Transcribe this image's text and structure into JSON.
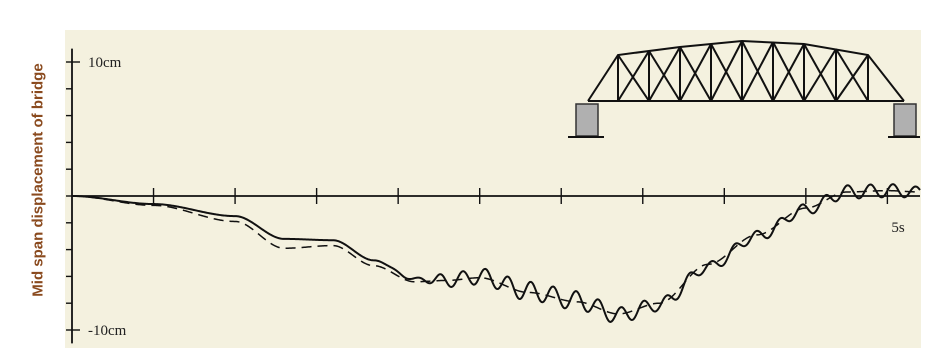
{
  "chart_data": {
    "type": "line",
    "title": "",
    "xlabel": "",
    "ylabel": "Mid span displacement of bridge",
    "x_unit": "s",
    "y_unit": "cm",
    "xlim": [
      0,
      5.2
    ],
    "ylim": [
      -10,
      10
    ],
    "y_tick_labels": [
      {
        "value": 10,
        "label": "10cm"
      },
      {
        "value": -10,
        "label": "-10cm"
      }
    ],
    "x_tick_labels": [
      {
        "value": 5,
        "label": "5s"
      }
    ],
    "grid": false,
    "legend": "none",
    "series": [
      {
        "style": "solid",
        "x": [
          0,
          0.5,
          1.0,
          1.3,
          1.6,
          1.85,
          2.1,
          2.3,
          2.5,
          2.8,
          3.1,
          3.35,
          3.6,
          3.9,
          4.2,
          4.5,
          4.75,
          5.0,
          5.2
        ],
        "y": [
          0,
          -0.6,
          -1.5,
          -3.2,
          -3.3,
          -4.8,
          -6.2,
          -6.3,
          -6.0,
          -7.1,
          -7.8,
          -8.9,
          -8.1,
          -5.3,
          -3.0,
          -1.0,
          0.3,
          0.4,
          0.3
        ],
        "wiggle_amplitude": [
          0,
          0,
          0,
          0,
          0,
          0,
          0.1,
          0.5,
          0.6,
          0.7,
          0.7,
          0.6,
          0.5,
          0.4,
          0.4,
          0.4,
          0.5,
          0.5,
          0.4
        ]
      },
      {
        "style": "dashed",
        "x": [
          0,
          0.5,
          1.0,
          1.3,
          1.6,
          1.85,
          2.1,
          2.3,
          2.5,
          2.8,
          3.1,
          3.35,
          3.6,
          3.9,
          4.2,
          4.5,
          4.75,
          5.0,
          5.2
        ],
        "y": [
          0,
          -0.7,
          -1.9,
          -3.9,
          -3.7,
          -5.2,
          -6.4,
          -6.3,
          -6.1,
          -7.2,
          -7.9,
          -8.8,
          -8.0,
          -5.1,
          -2.9,
          -0.9,
          0.3,
          0.4,
          0.3
        ]
      }
    ]
  },
  "colors": {
    "plot_background": "#f4f1df",
    "axis": "#111111",
    "line": "#111111",
    "ylabel": "#8a4a1e",
    "pier": "#b0b0b0"
  },
  "icons": [
    "truss-bridge-icon"
  ]
}
